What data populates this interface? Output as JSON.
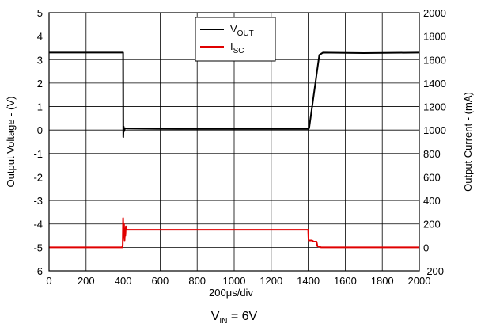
{
  "chart_data": {
    "type": "line",
    "ylabel_left": "Output Voltage - (V)",
    "ylabel_right": "Output Current - (mA)",
    "xlabel": "200μs/div",
    "caption": {
      "main": "V",
      "sub": "IN",
      "rest": " = 6V"
    },
    "xlim": [
      0,
      2000
    ],
    "ylim_left": [
      -6,
      5
    ],
    "ylim_right": [
      -200,
      2000
    ],
    "x_ticks": [
      "0",
      "200",
      "400",
      "600",
      "800",
      "1000",
      "1200",
      "1400",
      "1600",
      "1800",
      "2000"
    ],
    "y_ticks_left": [
      "-6",
      "-5",
      "-4",
      "-3",
      "-2",
      "-1",
      "0",
      "1",
      "2",
      "3",
      "4",
      "5"
    ],
    "y_ticks_right": [
      "-200",
      "0",
      "200",
      "400",
      "600",
      "800",
      "1000",
      "1200",
      "1400",
      "1600",
      "1800",
      "2000"
    ],
    "grid": true,
    "legend_position": "top-center",
    "series": [
      {
        "name_main": "V",
        "name_sub": "OUT",
        "color": "#000000",
        "axis": "left",
        "x": [
          0,
          398,
          400,
          401,
          403,
          406,
          410,
          420,
          700,
          1000,
          1300,
          1400,
          1405,
          1460,
          1480,
          1700,
          2000
        ],
        "y": [
          3.3,
          3.3,
          3.3,
          -0.3,
          0.15,
          -0.05,
          0.08,
          0.07,
          0.05,
          0.05,
          0.05,
          0.05,
          0.08,
          3.2,
          3.3,
          3.28,
          3.3
        ]
      },
      {
        "name_main": "I",
        "name_sub": "SC",
        "color": "#e00000",
        "axis": "right",
        "x": [
          0,
          395,
          398,
          400,
          402,
          405,
          408,
          410,
          412,
          415,
          420,
          425,
          700,
          1000,
          1300,
          1400,
          1402,
          1420,
          1430,
          1445,
          1450,
          1470,
          1480,
          1700,
          2000
        ],
        "y": [
          0,
          0,
          20,
          250,
          80,
          200,
          60,
          140,
          100,
          180,
          150,
          150,
          150,
          150,
          150,
          150,
          60,
          60,
          50,
          50,
          10,
          0,
          0,
          0,
          0
        ]
      }
    ]
  }
}
